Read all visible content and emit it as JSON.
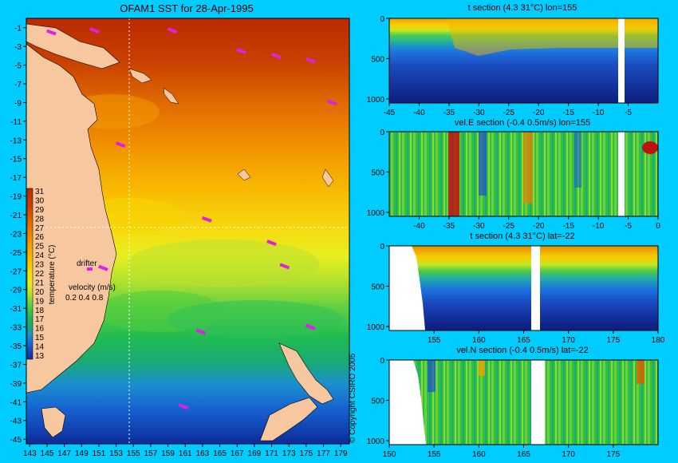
{
  "charts": {
    "map": {
      "title": "OFAM1 SST for 28-Apr-1995",
      "lon_ticks": [
        "143",
        "145",
        "147",
        "149",
        "151",
        "153",
        "155",
        "157",
        "159",
        "161",
        "163",
        "165",
        "167",
        "169",
        "171",
        "173",
        "175",
        "177",
        "179"
      ],
      "lat_ticks": [
        "-1",
        "-3",
        "-5",
        "-7",
        "-9",
        "-11",
        "-13",
        "-15",
        "-17",
        "-19",
        "-21",
        "-23",
        "-25",
        "-27",
        "-29",
        "-31",
        "-33",
        "-35",
        "-37",
        "-39",
        "-41",
        "-43",
        "-45"
      ],
      "colorbar_label": "temperature (°C)",
      "colorbar_values": [
        "31",
        "30",
        "29",
        "28",
        "27",
        "26",
        "25",
        "24",
        "23",
        "22",
        "21",
        "20",
        "19",
        "18",
        "17",
        "16",
        "15",
        "14",
        "13"
      ],
      "drifter_label": "drifter",
      "velocity_label": "velocity (m/s)",
      "velocity_scale": "0.2 0.4 0.8",
      "copyright": "© Copyright CSIRO 2005"
    },
    "panel1": {
      "title": "t section (4.3       31°C) lon=155",
      "x_ticks": [
        "-45",
        "-40",
        "-35",
        "-30",
        "-25",
        "-20",
        "-15",
        "-10",
        "-5"
      ],
      "y_ticks": [
        "0",
        "500",
        "1000"
      ]
    },
    "panel2": {
      "title": "vel.E section (-0.4       0.5m/s) lon=155",
      "x_ticks": [
        "-40",
        "-35",
        "-30",
        "-25",
        "-20",
        "-15",
        "-10",
        "-5",
        "0"
      ],
      "y_ticks": [
        "0",
        "500",
        "1000"
      ]
    },
    "panel3": {
      "title": "t section (4.3       31°C) lat=-22",
      "x_ticks": [
        "155",
        "160",
        "165",
        "170",
        "175",
        "180"
      ],
      "y_ticks": [
        "0",
        "500",
        "1000"
      ]
    },
    "panel4": {
      "title": "vel.N section (-0.4       0.5m/s) lat=-22",
      "x_ticks": [
        "150",
        "155",
        "160",
        "165",
        "170",
        "175"
      ],
      "y_ticks": [
        "0",
        "500",
        "1000"
      ]
    }
  },
  "chart_data": [
    {
      "type": "heatmap",
      "title": "OFAM1 SST for 28-Apr-1995",
      "xlabel": "",
      "ylabel": "",
      "xlim": [
        143,
        180
      ],
      "ylim": [
        -45,
        0
      ],
      "colorbar": {
        "label": "temperature (°C)",
        "range": [
          13,
          31
        ]
      },
      "sst_by_latitude": [
        {
          "lat": -1,
          "value": 30.5
        },
        {
          "lat": -5,
          "value": 30
        },
        {
          "lat": -9,
          "value": 29.5
        },
        {
          "lat": -13,
          "value": 28
        },
        {
          "lat": -17,
          "value": 27
        },
        {
          "lat": -21,
          "value": 26
        },
        {
          "lat": -25,
          "value": 24
        },
        {
          "lat": -29,
          "value": 22
        },
        {
          "lat": -33,
          "value": 20
        },
        {
          "lat": -37,
          "value": 18
        },
        {
          "lat": -41,
          "value": 16
        },
        {
          "lat": -45,
          "value": 14
        }
      ],
      "drifters": [
        {
          "lon": 145.5,
          "lat": -1.5
        },
        {
          "lon": 150.5,
          "lat": -1.3
        },
        {
          "lon": 159.5,
          "lat": -1.3
        },
        {
          "lon": 167.5,
          "lat": -3.5
        },
        {
          "lon": 171.5,
          "lat": -4.0
        },
        {
          "lon": 175.5,
          "lat": -4.5
        },
        {
          "lon": 178.0,
          "lat": -9.0
        },
        {
          "lon": 153.5,
          "lat": -13.5
        },
        {
          "lon": 163.5,
          "lat": -21.5
        },
        {
          "lon": 171.0,
          "lat": -24.0
        },
        {
          "lon": 172.5,
          "lat": -26.5
        },
        {
          "lon": 151.5,
          "lat": -26.7
        },
        {
          "lon": 162.8,
          "lat": -33.5
        },
        {
          "lon": 175.5,
          "lat": -33.0
        },
        {
          "lon": 160.8,
          "lat": -41.5
        }
      ]
    },
    {
      "type": "heatmap",
      "title": "t section (4.3       31°C) lon=155",
      "xlim": [
        -45,
        0
      ],
      "ylim": [
        1050,
        0
      ],
      "value_range": [
        4.3,
        31
      ],
      "land_mask_x": [
        -6.3,
        -5.6
      ]
    },
    {
      "type": "heatmap",
      "title": "vel.E section (-0.4       0.5m/s) lon=155",
      "xlim": [
        -45,
        0
      ],
      "ylim": [
        1050,
        0
      ],
      "value_range": [
        -0.4,
        0.5
      ],
      "land_mask_x": [
        -6.3,
        -5.3
      ]
    },
    {
      "type": "heatmap",
      "title": "t section (4.3       31°C) lat=-22",
      "xlim": [
        150,
        180
      ],
      "ylim": [
        1050,
        0
      ],
      "value_range": [
        4.3,
        31
      ],
      "land_mask_x": [
        [
          150,
          154
        ],
        [
          166,
          167
        ]
      ]
    },
    {
      "type": "heatmap",
      "title": "vel.N section (-0.4       0.5m/s) lat=-22",
      "xlim": [
        150,
        180
      ],
      "ylim": [
        1050,
        0
      ],
      "value_range": [
        -0.4,
        0.5
      ],
      "land_mask_x": [
        [
          150,
          154
        ],
        [
          166,
          167
        ]
      ]
    }
  ]
}
